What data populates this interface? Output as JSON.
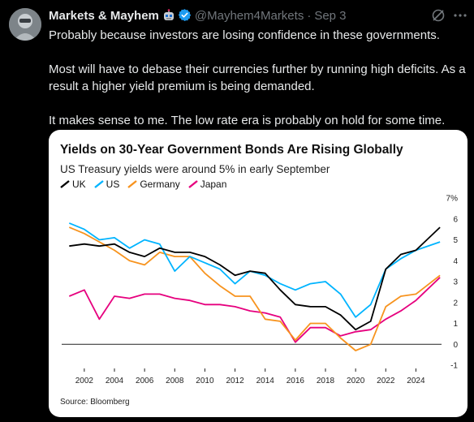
{
  "tweet": {
    "author_name": "Markets & Mayhem",
    "author_handle": "@Mayhem4Markets",
    "separator": "·",
    "timestamp": "Sep 3",
    "paragraphs": [
      "Probably because investors are losing confidence in these governments.",
      "Most will have to debase their currencies further by running high deficits. As a result a higher yield premium is being demanded.",
      "It makes sense to me. The low rate era is probably on hold for some time."
    ],
    "icons": [
      "avatar",
      "robot-emoji-icon",
      "verified-badge-icon",
      "grok-icon",
      "more-options-icon"
    ],
    "accent_color": "#1d9bf0"
  },
  "chart_data": {
    "type": "line",
    "title": "Yields on 30-Year Government Bonds Are Rising Globally",
    "subtitle": "US Treasury yields were around 5% in early September",
    "source": "Source: Bloomberg",
    "y_unit": "%",
    "ylim": [
      -1,
      7
    ],
    "yticks": [
      -1,
      0,
      1,
      2,
      3,
      4,
      5,
      6,
      7
    ],
    "ytick_labels": [
      "-1",
      "0",
      "1",
      "2",
      "3",
      "4",
      "5",
      "6",
      "7%"
    ],
    "xlim": [
      2000.5,
      2025.7
    ],
    "xticks": [
      2002,
      2004,
      2006,
      2008,
      2010,
      2012,
      2014,
      2016,
      2018,
      2020,
      2022,
      2024
    ],
    "grid": false,
    "legend_position": "top-left",
    "x": [
      2001,
      2002,
      2003,
      2004,
      2005,
      2006,
      2007,
      2008,
      2009,
      2010,
      2011,
      2012,
      2013,
      2014,
      2015,
      2016,
      2017,
      2018,
      2019,
      2020,
      2021,
      2022,
      2023,
      2024,
      2025.6
    ],
    "series": [
      {
        "name": "UK",
        "color": "#000000",
        "values": [
          4.7,
          4.8,
          4.7,
          4.8,
          4.4,
          4.2,
          4.6,
          4.4,
          4.4,
          4.2,
          3.8,
          3.3,
          3.5,
          3.4,
          2.6,
          1.9,
          1.8,
          1.8,
          1.4,
          0.7,
          1.1,
          3.6,
          4.3,
          4.5,
          5.6
        ]
      },
      {
        "name": "US",
        "color": "#00b4ff",
        "values": [
          5.8,
          5.5,
          5.0,
          5.1,
          4.6,
          5.0,
          4.8,
          3.5,
          4.2,
          3.9,
          3.6,
          2.9,
          3.5,
          3.3,
          2.9,
          2.6,
          2.9,
          3.0,
          2.4,
          1.3,
          1.9,
          3.6,
          4.1,
          4.5,
          4.9
        ]
      },
      {
        "name": "Germany",
        "color": "#f7931e",
        "values": [
          5.6,
          5.3,
          4.9,
          4.5,
          4.0,
          3.8,
          4.4,
          4.2,
          4.2,
          3.4,
          2.8,
          2.3,
          2.3,
          1.2,
          1.1,
          0.2,
          1.0,
          1.0,
          0.3,
          -0.3,
          0.0,
          1.8,
          2.3,
          2.4,
          3.3
        ]
      },
      {
        "name": "Japan",
        "color": "#e6007e",
        "values": [
          2.3,
          2.6,
          1.2,
          2.3,
          2.2,
          2.4,
          2.4,
          2.2,
          2.1,
          1.9,
          1.9,
          1.8,
          1.6,
          1.5,
          1.3,
          0.1,
          0.8,
          0.8,
          0.4,
          0.6,
          0.7,
          1.2,
          1.6,
          2.1,
          3.2
        ]
      }
    ]
  }
}
